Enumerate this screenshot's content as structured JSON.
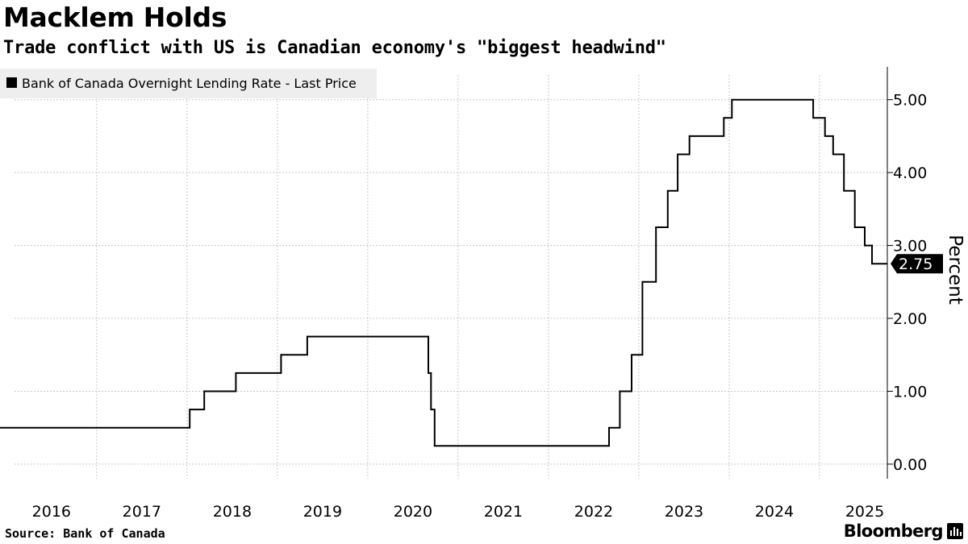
{
  "title": "Macklem Holds",
  "subtitle": "Trade conflict with US is Canadian economy's \"biggest headwind\"",
  "source": "Source:  Bank of Canada",
  "brand": "Bloomberg",
  "colors": {
    "line": "#000000",
    "grid": "#c8c8c8",
    "legend_bg": "#eeeeee",
    "tag_bg": "#000000",
    "tag_text": "#ffffff"
  },
  "chart_data": {
    "type": "line",
    "step": true,
    "legend": "Bank of Canada Overnight Lending Rate - Last Price",
    "legend_position": "top-left",
    "ylabel": "Percent",
    "y_axis_side": "right",
    "ylim": [
      -0.2,
      5.45
    ],
    "yticks": [
      0,
      1,
      2,
      3,
      4,
      5
    ],
    "ytick_labels": [
      "0.00",
      "1.00",
      "2.00",
      "3.00",
      "4.00",
      "5.00"
    ],
    "xlim": [
      2015.43,
      2025.25
    ],
    "xtick_positions": [
      2016.0,
      2017.0,
      2018.0,
      2019.0,
      2020.0,
      2021.0,
      2022.0,
      2023.0,
      2024.0,
      2025.0
    ],
    "xtick_labels": [
      "2016",
      "2017",
      "2018",
      "2019",
      "2020",
      "2021",
      "2022",
      "2023",
      "2024",
      "2025"
    ],
    "grid": true,
    "last_value_label": "2.75",
    "series": [
      {
        "name": "Bank of Canada Overnight Lending Rate - Last Price",
        "points": [
          [
            2015.43,
            0.5
          ],
          [
            2017.53,
            0.75
          ],
          [
            2017.69,
            1.0
          ],
          [
            2018.04,
            1.25
          ],
          [
            2018.54,
            1.5
          ],
          [
            2018.83,
            1.75
          ],
          [
            2020.17,
            1.25
          ],
          [
            2020.2,
            0.75
          ],
          [
            2020.24,
            0.25
          ],
          [
            2022.17,
            0.5
          ],
          [
            2022.29,
            1.0
          ],
          [
            2022.42,
            1.5
          ],
          [
            2022.54,
            2.5
          ],
          [
            2022.69,
            3.25
          ],
          [
            2022.82,
            3.75
          ],
          [
            2022.93,
            4.25
          ],
          [
            2023.06,
            4.5
          ],
          [
            2023.44,
            4.75
          ],
          [
            2023.53,
            5.0
          ],
          [
            2024.43,
            4.75
          ],
          [
            2024.56,
            4.5
          ],
          [
            2024.65,
            4.25
          ],
          [
            2024.77,
            3.75
          ],
          [
            2024.89,
            3.25
          ],
          [
            2025.0,
            3.0
          ],
          [
            2025.08,
            2.75
          ],
          [
            2025.25,
            2.75
          ]
        ]
      }
    ]
  }
}
